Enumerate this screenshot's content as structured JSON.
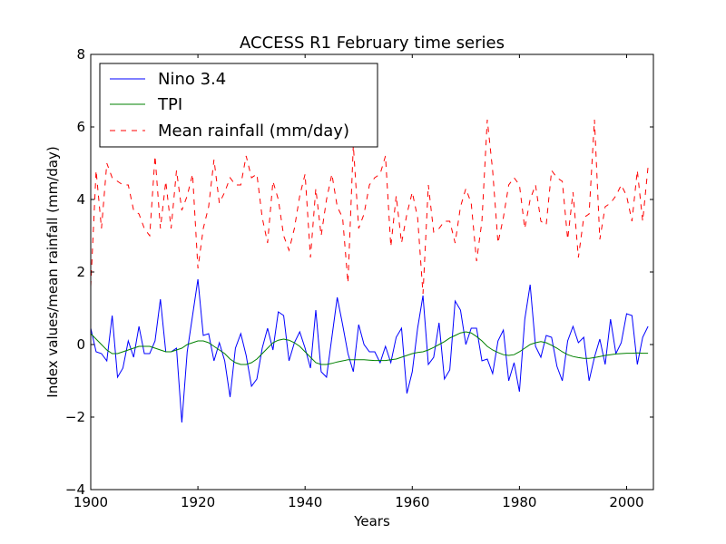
{
  "chart_data": {
    "type": "line",
    "title": "ACCESS R1 February time series",
    "xlabel": "Years",
    "ylabel": "Index values/mean rainfall (mm/day)",
    "xlim": [
      1900,
      2005
    ],
    "ylim": [
      -4,
      8
    ],
    "xticks": [
      1900,
      1920,
      1940,
      1960,
      1980,
      2000
    ],
    "yticks": [
      -4,
      -2,
      0,
      2,
      4,
      6,
      8
    ],
    "grid": false,
    "legend_position": "top-left",
    "series": [
      {
        "name": "Nino 3.4",
        "color": "#0000ff",
        "style": "solid",
        "x": [
          1900,
          1901,
          1902,
          1903,
          1904,
          1905,
          1906,
          1907,
          1908,
          1909,
          1910,
          1911,
          1912,
          1913,
          1914,
          1915,
          1916,
          1917,
          1918,
          1919,
          1920,
          1921,
          1922,
          1923,
          1924,
          1925,
          1926,
          1927,
          1928,
          1929,
          1930,
          1931,
          1932,
          1933,
          1934,
          1935,
          1936,
          1937,
          1938,
          1939,
          1940,
          1941,
          1942,
          1943,
          1944,
          1945,
          1946,
          1947,
          1948,
          1949,
          1950,
          1951,
          1952,
          1953,
          1954,
          1955,
          1956,
          1957,
          1958,
          1959,
          1960,
          1961,
          1962,
          1963,
          1964,
          1965,
          1966,
          1967,
          1968,
          1969,
          1970,
          1971,
          1972,
          1973,
          1974,
          1975,
          1976,
          1977,
          1978,
          1979,
          1980,
          1981,
          1982,
          1983,
          1984,
          1985,
          1986,
          1987,
          1988,
          1989,
          1990,
          1991,
          1992,
          1993,
          1994,
          1995,
          1996,
          1997,
          1998,
          1999,
          2000,
          2001,
          2002,
          2003,
          2004
        ],
        "y": [
          0.45,
          -0.2,
          -0.25,
          -0.45,
          0.8,
          -0.9,
          -0.65,
          0.1,
          -0.35,
          0.5,
          -0.25,
          -0.25,
          0.1,
          1.25,
          -0.2,
          -0.2,
          -0.1,
          -2.15,
          -0.2,
          0.8,
          1.8,
          0.25,
          0.3,
          -0.45,
          0.05,
          -0.45,
          -1.45,
          -0.1,
          0.3,
          -0.3,
          -1.15,
          -0.95,
          -0.1,
          0.45,
          -0.15,
          0.9,
          0.8,
          -0.45,
          0.05,
          0.35,
          -0.1,
          -0.65,
          0.95,
          -0.75,
          -0.9,
          0.2,
          1.3,
          0.55,
          -0.25,
          -0.75,
          0.55,
          0.0,
          -0.2,
          -0.2,
          -0.5,
          -0.05,
          -0.5,
          0.2,
          0.45,
          -1.35,
          -0.75,
          0.45,
          1.35,
          -0.55,
          -0.35,
          0.6,
          -0.95,
          -0.7,
          1.2,
          0.95,
          0.0,
          0.45,
          0.45,
          -0.45,
          -0.4,
          -0.8,
          0.1,
          0.4,
          -1.0,
          -0.5,
          -1.3,
          0.7,
          1.65,
          -0.05,
          -0.35,
          0.25,
          0.2,
          -0.6,
          -1.0,
          0.1,
          0.5,
          0.05,
          0.2,
          -1.0,
          -0.35,
          0.15,
          -0.55,
          0.7,
          -0.25,
          0.05,
          0.85,
          0.8,
          -0.55,
          0.2,
          0.5
        ]
      },
      {
        "name": "TPI",
        "color": "#008000",
        "style": "solid",
        "x": [
          1900,
          1901,
          1902,
          1903,
          1904,
          1905,
          1906,
          1907,
          1908,
          1909,
          1910,
          1911,
          1912,
          1913,
          1914,
          1915,
          1916,
          1917,
          1918,
          1919,
          1920,
          1921,
          1922,
          1923,
          1924,
          1925,
          1926,
          1927,
          1928,
          1929,
          1930,
          1931,
          1932,
          1933,
          1934,
          1935,
          1936,
          1937,
          1938,
          1939,
          1940,
          1941,
          1942,
          1943,
          1944,
          1945,
          1946,
          1947,
          1948,
          1949,
          1950,
          1951,
          1952,
          1953,
          1954,
          1955,
          1956,
          1957,
          1958,
          1959,
          1960,
          1961,
          1962,
          1963,
          1964,
          1965,
          1966,
          1967,
          1968,
          1969,
          1970,
          1971,
          1972,
          1973,
          1974,
          1975,
          1976,
          1977,
          1978,
          1979,
          1980,
          1981,
          1982,
          1983,
          1984,
          1985,
          1986,
          1987,
          1988,
          1989,
          1990,
          1991,
          1992,
          1993,
          1994,
          1995,
          1996,
          1997,
          1998,
          1999,
          2000,
          2001,
          2002,
          2003,
          2004
        ],
        "y": [
          0.3,
          0.15,
          0.0,
          -0.15,
          -0.25,
          -0.25,
          -0.2,
          -0.15,
          -0.1,
          -0.05,
          -0.05,
          -0.05,
          -0.1,
          -0.15,
          -0.2,
          -0.2,
          -0.15,
          -0.1,
          0.0,
          0.05,
          0.1,
          0.1,
          0.05,
          -0.05,
          -0.15,
          -0.25,
          -0.4,
          -0.5,
          -0.55,
          -0.55,
          -0.5,
          -0.4,
          -0.25,
          -0.1,
          0.05,
          0.12,
          0.15,
          0.12,
          0.05,
          -0.05,
          -0.2,
          -0.35,
          -0.5,
          -0.55,
          -0.55,
          -0.52,
          -0.48,
          -0.45,
          -0.42,
          -0.42,
          -0.42,
          -0.42,
          -0.43,
          -0.44,
          -0.44,
          -0.44,
          -0.42,
          -0.4,
          -0.35,
          -0.3,
          -0.25,
          -0.22,
          -0.2,
          -0.15,
          -0.08,
          0.0,
          0.08,
          0.18,
          0.25,
          0.32,
          0.35,
          0.32,
          0.22,
          0.1,
          -0.05,
          -0.15,
          -0.22,
          -0.28,
          -0.3,
          -0.28,
          -0.2,
          -0.1,
          0.0,
          0.05,
          0.08,
          0.05,
          -0.02,
          -0.1,
          -0.2,
          -0.28,
          -0.33,
          -0.36,
          -0.38,
          -0.38,
          -0.36,
          -0.33,
          -0.3,
          -0.28,
          -0.26,
          -0.25,
          -0.24,
          -0.24,
          -0.23,
          -0.24,
          -0.24
        ]
      },
      {
        "name": "Mean rainfall (mm/day)",
        "color": "#ff0000",
        "style": "dashed",
        "x": [
          1900,
          1901,
          1902,
          1903,
          1904,
          1905,
          1906,
          1907,
          1908,
          1909,
          1910,
          1911,
          1912,
          1913,
          1914,
          1915,
          1916,
          1917,
          1918,
          1919,
          1920,
          1921,
          1922,
          1923,
          1924,
          1925,
          1926,
          1927,
          1928,
          1929,
          1930,
          1931,
          1932,
          1933,
          1934,
          1935,
          1936,
          1937,
          1938,
          1939,
          1940,
          1941,
          1942,
          1943,
          1944,
          1945,
          1946,
          1947,
          1948,
          1949,
          1950,
          1951,
          1952,
          1953,
          1954,
          1955,
          1956,
          1957,
          1958,
          1959,
          1960,
          1961,
          1962,
          1963,
          1964,
          1965,
          1966,
          1967,
          1968,
          1969,
          1970,
          1971,
          1972,
          1973,
          1974,
          1975,
          1976,
          1977,
          1978,
          1979,
          1980,
          1981,
          1982,
          1983,
          1984,
          1985,
          1986,
          1987,
          1988,
          1989,
          1990,
          1991,
          1992,
          1993,
          1994,
          1995,
          1996,
          1997,
          1998,
          1999,
          2000,
          2001,
          2002,
          2003,
          2004
        ],
        "y": [
          1.6,
          4.8,
          3.2,
          5.0,
          4.6,
          4.5,
          4.4,
          4.4,
          3.7,
          3.6,
          3.2,
          3.0,
          5.2,
          3.2,
          4.5,
          3.2,
          4.8,
          3.7,
          4.1,
          4.7,
          2.1,
          3.2,
          3.8,
          5.1,
          3.9,
          4.2,
          4.6,
          4.4,
          4.4,
          5.2,
          4.6,
          4.7,
          3.5,
          2.8,
          4.5,
          4.0,
          3.0,
          2.6,
          3.2,
          4.1,
          4.7,
          2.4,
          4.3,
          3.0,
          4.0,
          4.7,
          3.8,
          3.5,
          1.7,
          5.5,
          3.2,
          3.6,
          4.4,
          4.6,
          4.7,
          5.2,
          2.7,
          4.1,
          2.8,
          3.6,
          4.2,
          3.5,
          1.4,
          4.4,
          3.1,
          3.2,
          3.4,
          3.4,
          2.8,
          3.8,
          4.3,
          3.9,
          2.3,
          3.4,
          6.2,
          4.8,
          2.8,
          3.5,
          4.4,
          4.6,
          4.4,
          3.2,
          4.0,
          4.4,
          3.4,
          3.3,
          4.8,
          4.6,
          4.5,
          2.9,
          4.2,
          2.4,
          3.5,
          3.6,
          6.2,
          2.9,
          3.8,
          3.9,
          4.1,
          4.4,
          4.1,
          3.4,
          4.8,
          3.4,
          4.9
        ]
      }
    ]
  }
}
